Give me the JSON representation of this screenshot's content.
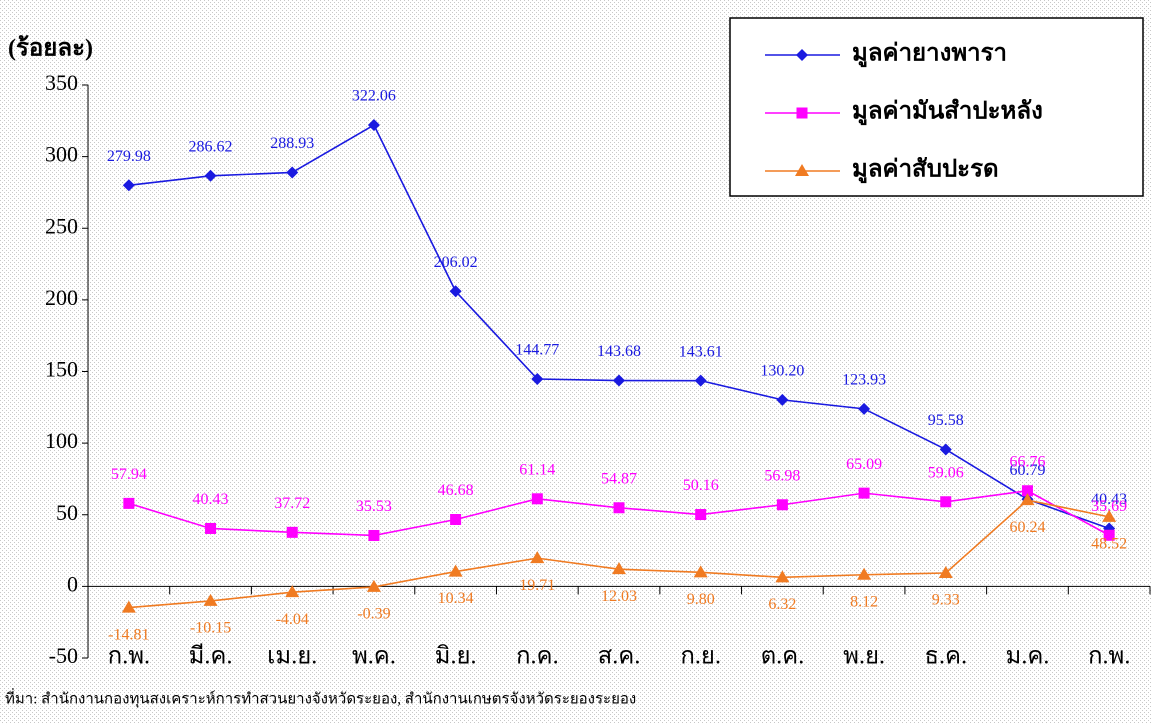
{
  "chart_data": {
    "type": "line",
    "y_label": "(ร้อยละ)",
    "categories": [
      "ก.พ.",
      "มี.ค.",
      "เม.ย.",
      "พ.ค.",
      "มิ.ย.",
      "ก.ค.",
      "ส.ค.",
      "ก.ย.",
      "ต.ค.",
      "พ.ย.",
      "ธ.ค.",
      "ม.ค.",
      "ก.พ."
    ],
    "series": [
      {
        "name": "มูลค่ายางพารา",
        "color": "#1a1ae0",
        "marker": "diamond",
        "values": [
          279.98,
          286.62,
          288.93,
          322.06,
          206.02,
          144.77,
          143.68,
          143.61,
          130.2,
          123.93,
          95.58,
          60.79,
          40.43
        ],
        "value_labels": [
          "279.98",
          "286.62",
          "288.93",
          "322.06",
          "206.02",
          "144.77",
          "143.68",
          "143.61",
          "130.20",
          "123.93",
          "95.58",
          "60.79",
          "40.43"
        ]
      },
      {
        "name": "มูลค่ามันสำปะหลัง",
        "color": "#ff00ff",
        "marker": "square",
        "values": [
          57.94,
          40.43,
          37.72,
          35.53,
          46.68,
          61.14,
          54.87,
          50.16,
          56.98,
          65.09,
          59.06,
          66.76,
          35.69
        ],
        "value_labels": [
          "57.94",
          "40.43",
          "37.72",
          "35.53",
          "46.68",
          "61.14",
          "54.87",
          "50.16",
          "56.98",
          "65.09",
          "59.06",
          "66.76",
          "35.69"
        ]
      },
      {
        "name": "มูลค่าสับปะรด",
        "color": "#f07b22",
        "marker": "triangle",
        "values": [
          -14.81,
          -10.15,
          -4.04,
          -0.39,
          10.34,
          19.71,
          12.03,
          9.8,
          6.32,
          8.12,
          9.33,
          60.24,
          48.52
        ],
        "value_labels": [
          "-14.81",
          "-10.15",
          "-4.04",
          "-0.39",
          "10.34",
          "19.71",
          "12.03",
          "9.80",
          "6.32",
          "8.12",
          "9.33",
          "60.24",
          "48.52"
        ]
      }
    ],
    "ylim": [
      -50,
      350
    ],
    "yticks": [
      -50,
      0,
      50,
      100,
      150,
      200,
      250,
      300,
      350
    ],
    "legend": "top-right",
    "source": "ที่มา: สำนักงานกองทุนสงเคราะห์การทำสวนยางจังหวัดระยอง, สำนักงานเกษตรจังหวัดระยองระยอง"
  }
}
